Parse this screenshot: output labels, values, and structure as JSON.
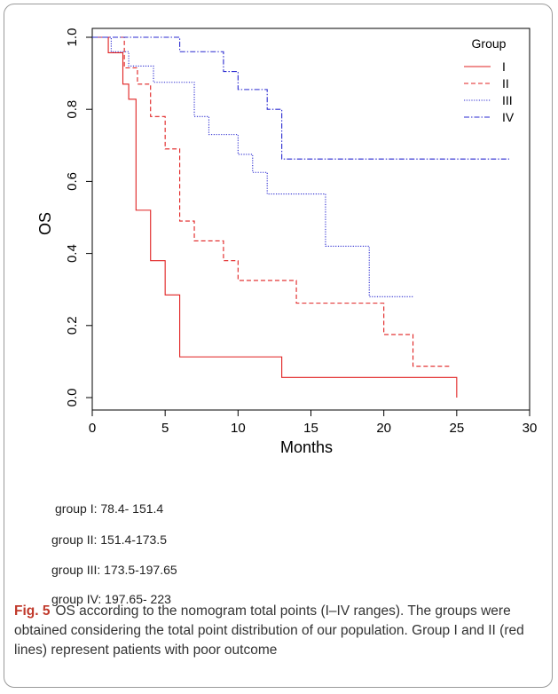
{
  "chart_data": {
    "type": "line",
    "step": true,
    "xlabel": "Months",
    "ylabel": "OS",
    "xlim": [
      0,
      30
    ],
    "ylim": [
      0,
      1.0
    ],
    "xticks": [
      0,
      5,
      10,
      15,
      20,
      25,
      30
    ],
    "yticks": [
      0.0,
      0.2,
      0.4,
      0.6,
      0.8,
      1.0
    ],
    "ytick_labels": [
      "0.0",
      "0.2",
      "0.4",
      "0.6",
      "0.8",
      "1.0"
    ],
    "legend": {
      "title": "Group",
      "placement": "top-right"
    },
    "series": [
      {
        "name": "I",
        "color": "#e02020",
        "dash": "solid",
        "x": [
          0,
          1.1,
          2.1,
          2.5,
          3.0,
          4.0,
          5.0,
          6.0,
          13.0,
          25.0,
          25.0
        ],
        "y": [
          1.0,
          0.957,
          0.87,
          0.828,
          0.52,
          0.38,
          0.285,
          0.113,
          0.056,
          0.056,
          0.0
        ]
      },
      {
        "name": "II",
        "color": "#e02020",
        "dash": "dashed",
        "x": [
          0,
          2.2,
          3.1,
          4.0,
          5.0,
          6.0,
          7.0,
          9.0,
          10.0,
          14.0,
          20.0,
          22.0,
          24.5
        ],
        "y": [
          1.0,
          0.915,
          0.87,
          0.78,
          0.69,
          0.49,
          0.435,
          0.38,
          0.325,
          0.262,
          0.175,
          0.087,
          0.087
        ]
      },
      {
        "name": "III",
        "color": "#2a2ad0",
        "dash": "dotted",
        "x": [
          0,
          1.3,
          2.5,
          4.2,
          7.0,
          8.0,
          10.0,
          11.0,
          12.0,
          16.0,
          19.0,
          22.0
        ],
        "y": [
          1.0,
          0.96,
          0.92,
          0.875,
          0.78,
          0.73,
          0.675,
          0.625,
          0.565,
          0.42,
          0.28,
          0.28
        ]
      },
      {
        "name": "IV",
        "color": "#2a2ad0",
        "dash": "dashdot",
        "x": [
          0,
          6.0,
          9.0,
          10.0,
          12.0,
          13.0,
          28.6
        ],
        "y": [
          1.0,
          0.96,
          0.905,
          0.855,
          0.8,
          0.662,
          0.662
        ]
      }
    ]
  },
  "groups": [
    {
      "text": "group I: 78.4- 151.4"
    },
    {
      "text": "group II: 151.4-173.5"
    },
    {
      "text": "group III: 173.5-197.65"
    },
    {
      "text": "group IV: 197.65- 223"
    }
  ],
  "caption": {
    "label": "Fig. 5",
    "text": "OS according to the nomogram total points (I–IV ranges). The groups were obtained considering the total point distribution of our population. Group I and II (red lines) represent patients with poor outcome"
  }
}
